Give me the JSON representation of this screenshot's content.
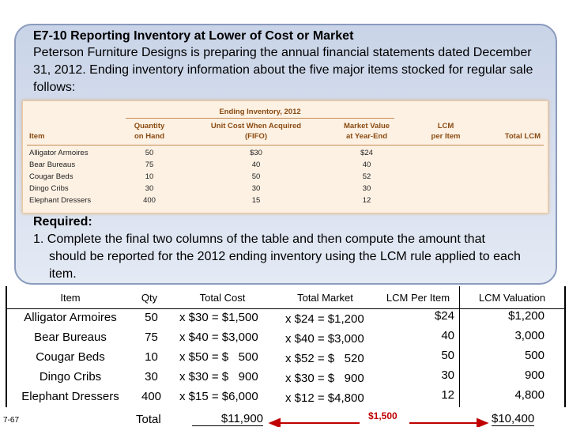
{
  "header": {
    "title": "E7-10 Reporting Inventory at Lower of Cost or Market",
    "text": "Peterson Furniture Designs is preparing the annual financial statements dated December 31, 2012. Ending inventory information about the five major items stocked for regular sale follows:"
  },
  "inset_table": {
    "title": "Ending Inventory, 2012",
    "columns": [
      "Item",
      "Quantity\non Hand",
      "Unit Cost When Acquired\n(FIFO)",
      "Market Value\nat Year-End",
      "LCM\nper Item",
      "Total LCM"
    ],
    "rows": [
      [
        "Alligator Armoires",
        "50",
        "$30",
        "$24"
      ],
      [
        "Bear Bureaus",
        "75",
        "40",
        "40"
      ],
      [
        "Cougar Beds",
        "10",
        "50",
        "52"
      ],
      [
        "Dingo Cribs",
        "30",
        "30",
        "30"
      ],
      [
        "Elephant Dressers",
        "400",
        "15",
        "12"
      ]
    ]
  },
  "required": {
    "label": "Required:",
    "text": "1. Complete the final two columns of the table and then compute the amount that should be reported for the 2012 ending inventory using the LCM rule applied to each item."
  },
  "table": {
    "columns": [
      "Item",
      "Qty",
      "Total Cost",
      "Total Market",
      "LCM Per Item",
      "LCM Valuation"
    ],
    "rows": [
      [
        "Alligator Armoires",
        "50",
        "x $30 = $1,500",
        "x $24 = $1,200",
        "$24",
        "$1,200"
      ],
      [
        "Bear Bureaus",
        "75",
        "x $40 = $3,000",
        "x $40 = $3,000",
        "40",
        "3,000"
      ],
      [
        "Cougar Beds",
        "10",
        "x $50 = $   500",
        "x $52 = $   520",
        "50",
        "500"
      ],
      [
        "Dingo Cribs",
        "30",
        "x $30 = $   900",
        "x $30 = $   900",
        "30",
        "900"
      ],
      [
        "Elephant Dressers",
        "400",
        "x $15 = $6,000",
        "x $12 = $4,800",
        "12",
        "4,800"
      ]
    ]
  },
  "footer": {
    "page": "7-67",
    "total_label": "Total",
    "total_cost": "$11,900",
    "difference": "$1,500",
    "total_lcm": "$10,400"
  }
}
